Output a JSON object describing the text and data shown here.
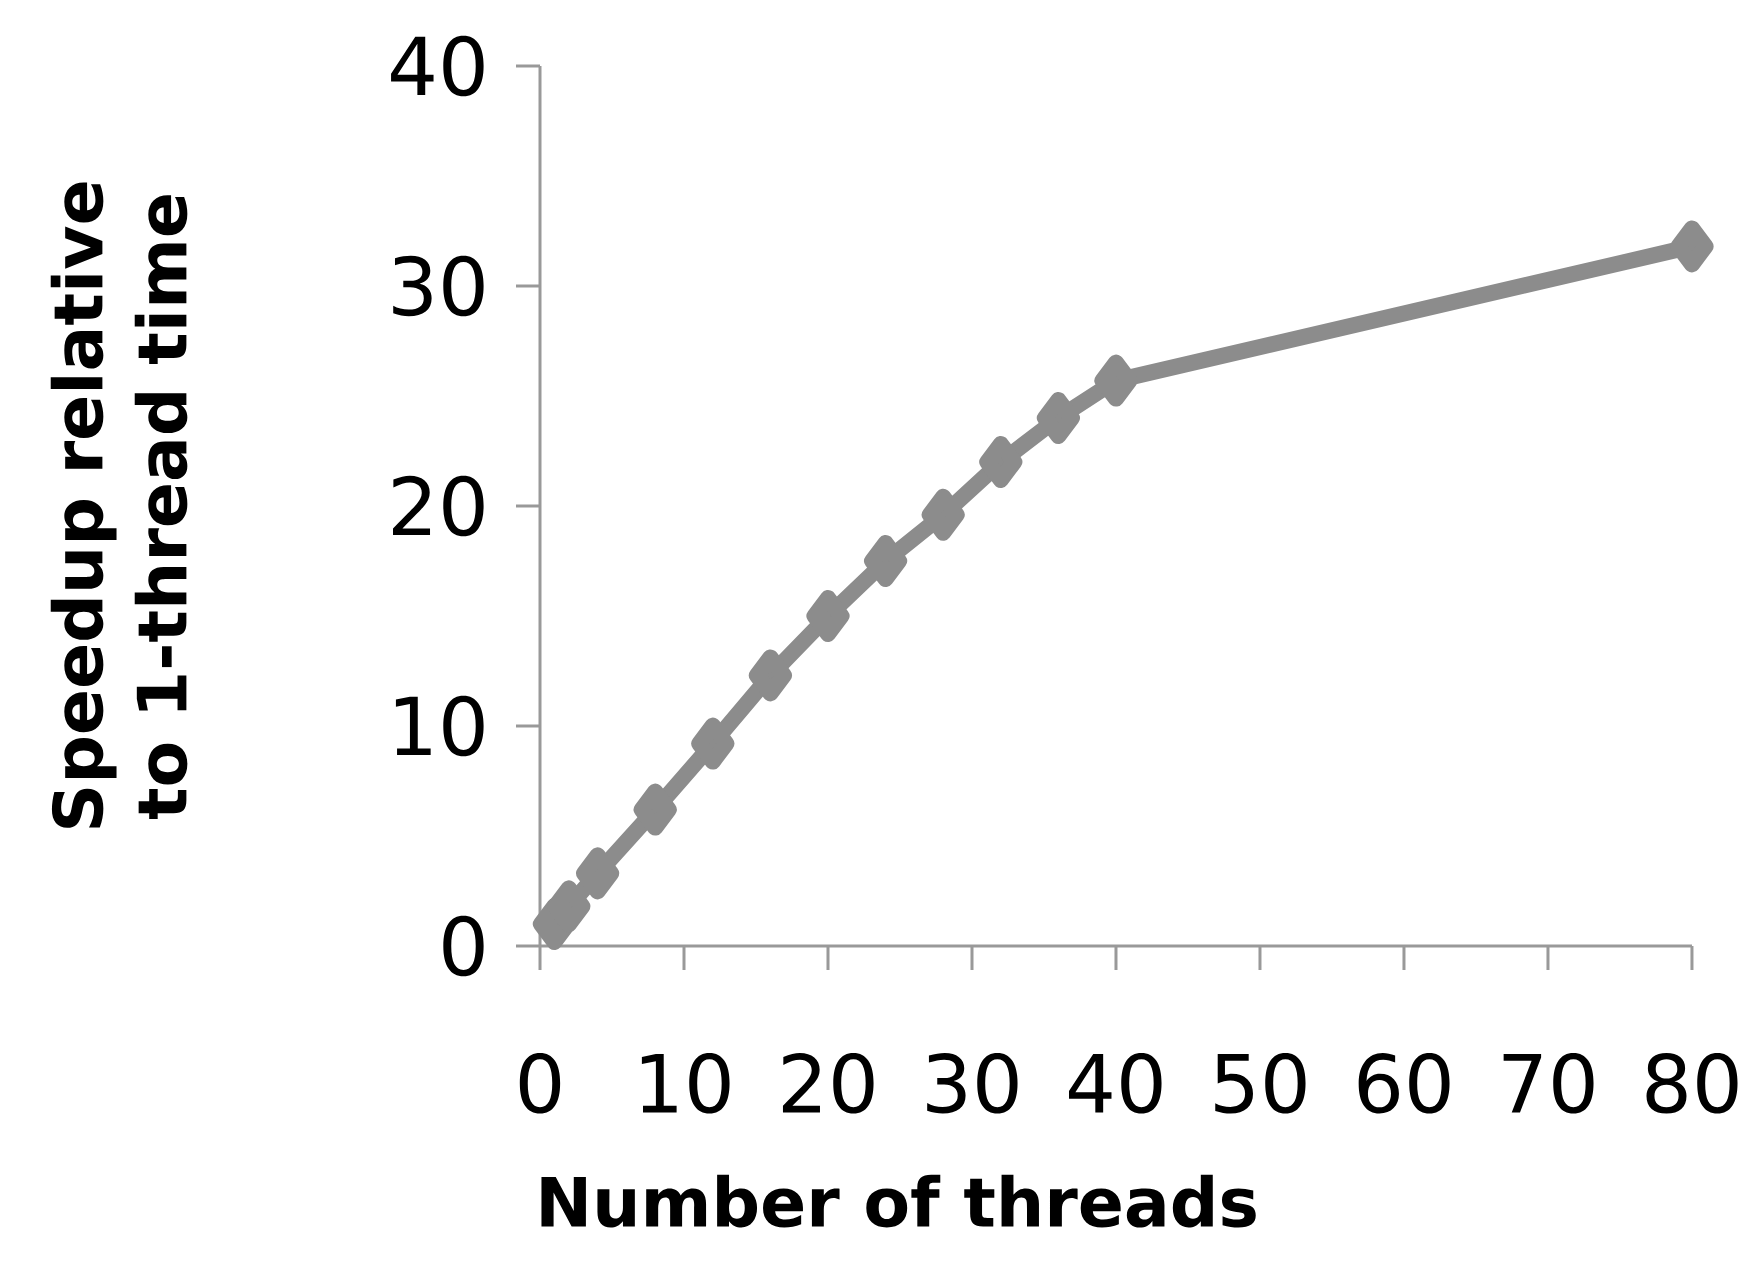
{
  "chart_data": {
    "type": "line",
    "xlabel": "Number of threads",
    "ylabel": "Speedup relative to 1-thread time",
    "x": [
      1,
      2,
      4,
      8,
      12,
      16,
      20,
      24,
      28,
      32,
      36,
      40,
      80
    ],
    "series": [
      {
        "color": "#8c8c8c",
        "values": [
          1.0,
          1.8,
          3.3,
          6.2,
          9.2,
          12.3,
          15.0,
          17.5,
          19.6,
          22.0,
          24.0,
          25.7,
          31.8
        ]
      }
    ],
    "xlim": [
      0,
      80
    ],
    "ylim": [
      0,
      40
    ],
    "xticks": [
      0,
      10,
      20,
      30,
      40,
      50,
      60,
      70,
      80
    ],
    "yticks": [
      0,
      10,
      20,
      30,
      40
    ],
    "marker": "diamond",
    "line_style": "solid",
    "grid": false
  }
}
